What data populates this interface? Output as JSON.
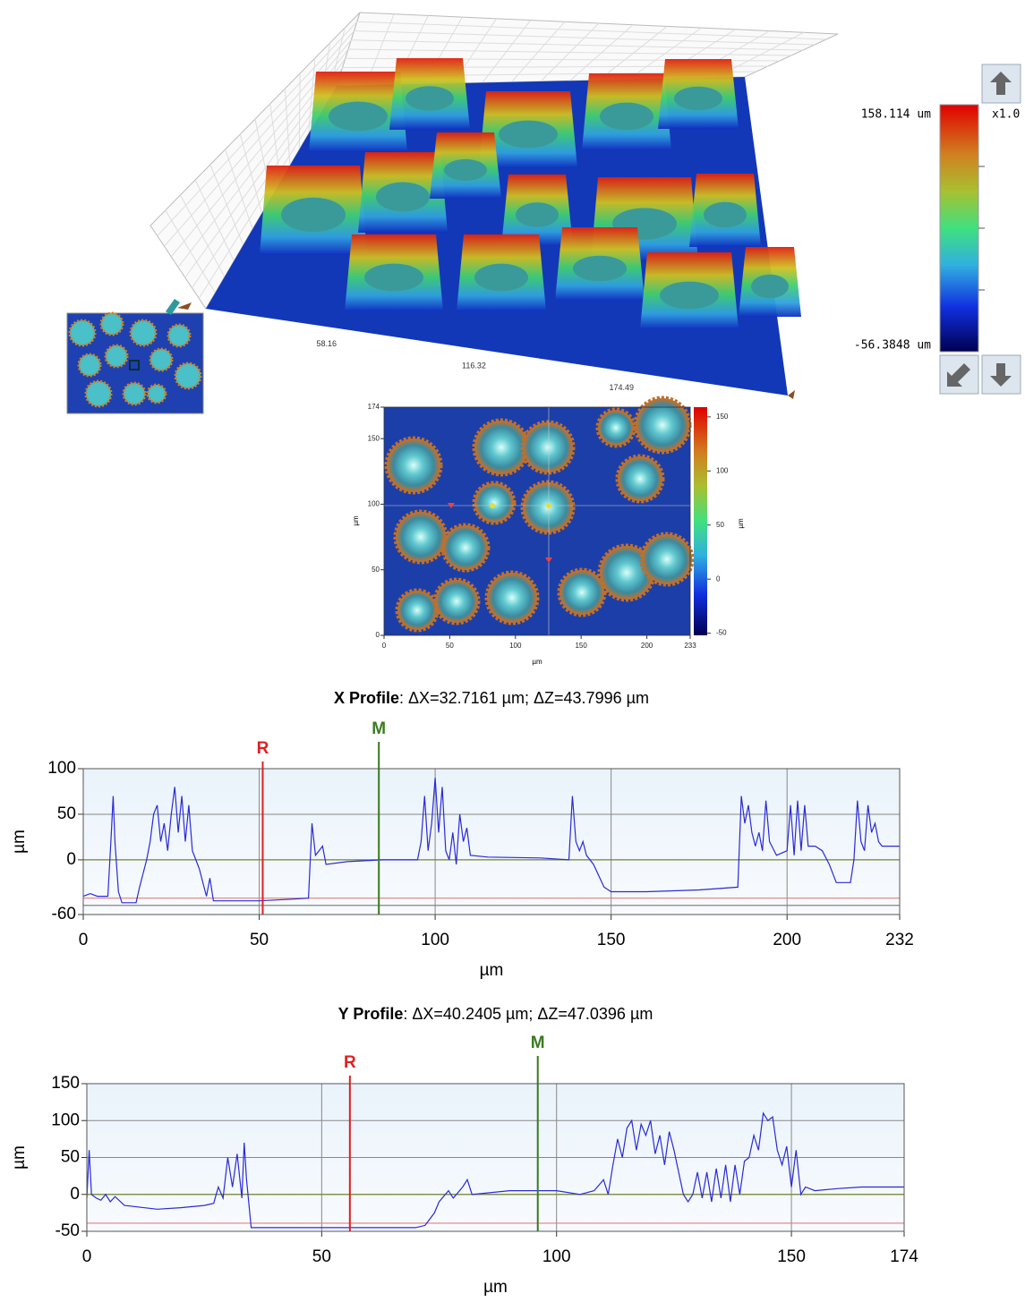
{
  "surface_3d": {
    "xlim": [
      0,
      233
    ],
    "xticks": [
      58.16,
      116.32,
      174.49
    ]
  },
  "colorbar": {
    "max_label": "158.114 um",
    "min_label": "-56.3848 um",
    "scale_label": "x1.0"
  },
  "height_map": {
    "xlim": [
      0,
      233
    ],
    "ylim": [
      0,
      174
    ],
    "xticks": [
      0,
      50,
      100,
      150,
      200,
      233
    ],
    "yticks": [
      0,
      50,
      100,
      150,
      174
    ],
    "xlabel": "µm",
    "ylabel": "µm",
    "clim": [
      -52,
      159
    ],
    "cticks": [
      -50,
      0,
      50,
      100,
      150
    ],
    "clabel": "µm"
  },
  "chart_data": [
    {
      "type": "line",
      "title": "X Profile",
      "subtitle": ": ΔX=32.7161 µm; ΔZ=43.7996 µm",
      "xlabel": "µm",
      "ylabel": "µm",
      "xlim": [
        0,
        232
      ],
      "ylim": [
        -60,
        100
      ],
      "xticks": [
        0,
        50,
        100,
        150,
        200,
        232
      ],
      "yticks": [
        -60,
        0,
        50,
        100
      ],
      "grid": true,
      "markers": [
        {
          "label": "R",
          "x": 51,
          "color": "#e02020"
        },
        {
          "label": "M",
          "x": 84,
          "color": "#3a7a20"
        }
      ],
      "ref_lines": [
        {
          "y": 0,
          "color": "#7a8a3a"
        },
        {
          "y": -42,
          "color": "#e08080"
        },
        {
          "y": -50,
          "color": "#777777"
        }
      ],
      "x": [
        0,
        2,
        4,
        7,
        8,
        8.5,
        9,
        10,
        11,
        15,
        16,
        18,
        19,
        20,
        21,
        22,
        23,
        24,
        25,
        26,
        27,
        28,
        29,
        30,
        31,
        32,
        33,
        35,
        36,
        37,
        40,
        50,
        60,
        64,
        65,
        66,
        67,
        68,
        69,
        75,
        85,
        95,
        96,
        97,
        98,
        99,
        100,
        101,
        102,
        103,
        104,
        105,
        106,
        107,
        108,
        109,
        110,
        115,
        130,
        138,
        139,
        140,
        141,
        142,
        143,
        145,
        148,
        150,
        160,
        175,
        186,
        187,
        188,
        189,
        190,
        191,
        192,
        193,
        194,
        195,
        197,
        200,
        201,
        202,
        203,
        204,
        205,
        206,
        208,
        210,
        212,
        214,
        218,
        219,
        220,
        221,
        222,
        223,
        224,
        225,
        226,
        227,
        232
      ],
      "series": [
        {
          "color": "#2a2ad8",
          "values": [
            -40,
            -37,
            -40,
            -40,
            30,
            70,
            20,
            -35,
            -47,
            -47,
            -30,
            0,
            20,
            50,
            60,
            20,
            40,
            10,
            50,
            80,
            30,
            70,
            20,
            60,
            10,
            0,
            -10,
            -40,
            -20,
            -45,
            -45,
            -45,
            -43,
            -42,
            40,
            5,
            10,
            15,
            -5,
            -2,
            0,
            0,
            20,
            70,
            10,
            40,
            90,
            30,
            80,
            10,
            0,
            30,
            -5,
            50,
            20,
            35,
            5,
            3,
            2,
            0,
            70,
            20,
            10,
            20,
            5,
            -5,
            -30,
            -35,
            -35,
            -33,
            -30,
            70,
            40,
            60,
            30,
            15,
            30,
            10,
            65,
            20,
            5,
            10,
            60,
            5,
            65,
            10,
            60,
            15,
            15,
            10,
            -5,
            -25,
            -25,
            0,
            65,
            20,
            10,
            60,
            30,
            40,
            20,
            15,
            15
          ]
        }
      ]
    },
    {
      "type": "line",
      "title": "Y Profile",
      "subtitle": ": ΔX=40.2405 µm; ΔZ=47.0396 µm",
      "xlabel": "µm",
      "ylabel": "µm",
      "xlim": [
        0,
        174
      ],
      "ylim": [
        -50,
        150
      ],
      "xticks": [
        0,
        50,
        100,
        150,
        174
      ],
      "yticks": [
        -50,
        0,
        50,
        100,
        150
      ],
      "grid": true,
      "markers": [
        {
          "label": "R",
          "x": 56,
          "color": "#e02020"
        },
        {
          "label": "M",
          "x": 96,
          "color": "#3a7a20"
        }
      ],
      "ref_lines": [
        {
          "y": 0,
          "color": "#7a8a3a"
        },
        {
          "y": -39,
          "color": "#e08080"
        }
      ],
      "x": [
        0,
        0.5,
        1,
        2,
        3,
        4,
        5,
        6,
        8,
        15,
        20,
        25,
        27,
        28,
        29,
        30,
        31,
        32,
        33,
        33.5,
        34,
        35,
        40,
        55,
        70,
        72,
        74,
        75,
        77,
        78,
        80,
        81,
        82,
        90,
        100,
        105,
        108,
        110,
        111,
        112,
        113,
        114,
        115,
        116,
        117,
        118,
        119,
        120,
        121,
        122,
        123,
        124,
        125,
        126,
        127,
        128,
        129,
        130,
        131,
        132,
        133,
        134,
        135,
        136,
        137,
        138,
        139,
        140,
        141,
        142,
        143,
        144,
        145,
        146,
        147,
        148,
        149,
        150,
        151,
        152,
        153,
        155,
        160,
        165,
        174
      ],
      "series": [
        {
          "color": "#2a2ad8",
          "values": [
            -5,
            60,
            0,
            -5,
            -8,
            0,
            -10,
            -3,
            -15,
            -20,
            -18,
            -15,
            -12,
            10,
            -5,
            50,
            10,
            55,
            -5,
            70,
            20,
            -45,
            -45,
            -45,
            -45,
            -42,
            -25,
            -10,
            5,
            -5,
            10,
            20,
            0,
            5,
            5,
            0,
            5,
            20,
            0,
            40,
            75,
            50,
            90,
            100,
            60,
            95,
            80,
            100,
            55,
            80,
            40,
            85,
            60,
            30,
            0,
            -10,
            0,
            30,
            -5,
            30,
            -10,
            35,
            -5,
            40,
            -10,
            40,
            0,
            45,
            50,
            80,
            60,
            110,
            100,
            105,
            60,
            40,
            65,
            10,
            60,
            0,
            10,
            5,
            8,
            10,
            10
          ]
        }
      ]
    }
  ]
}
